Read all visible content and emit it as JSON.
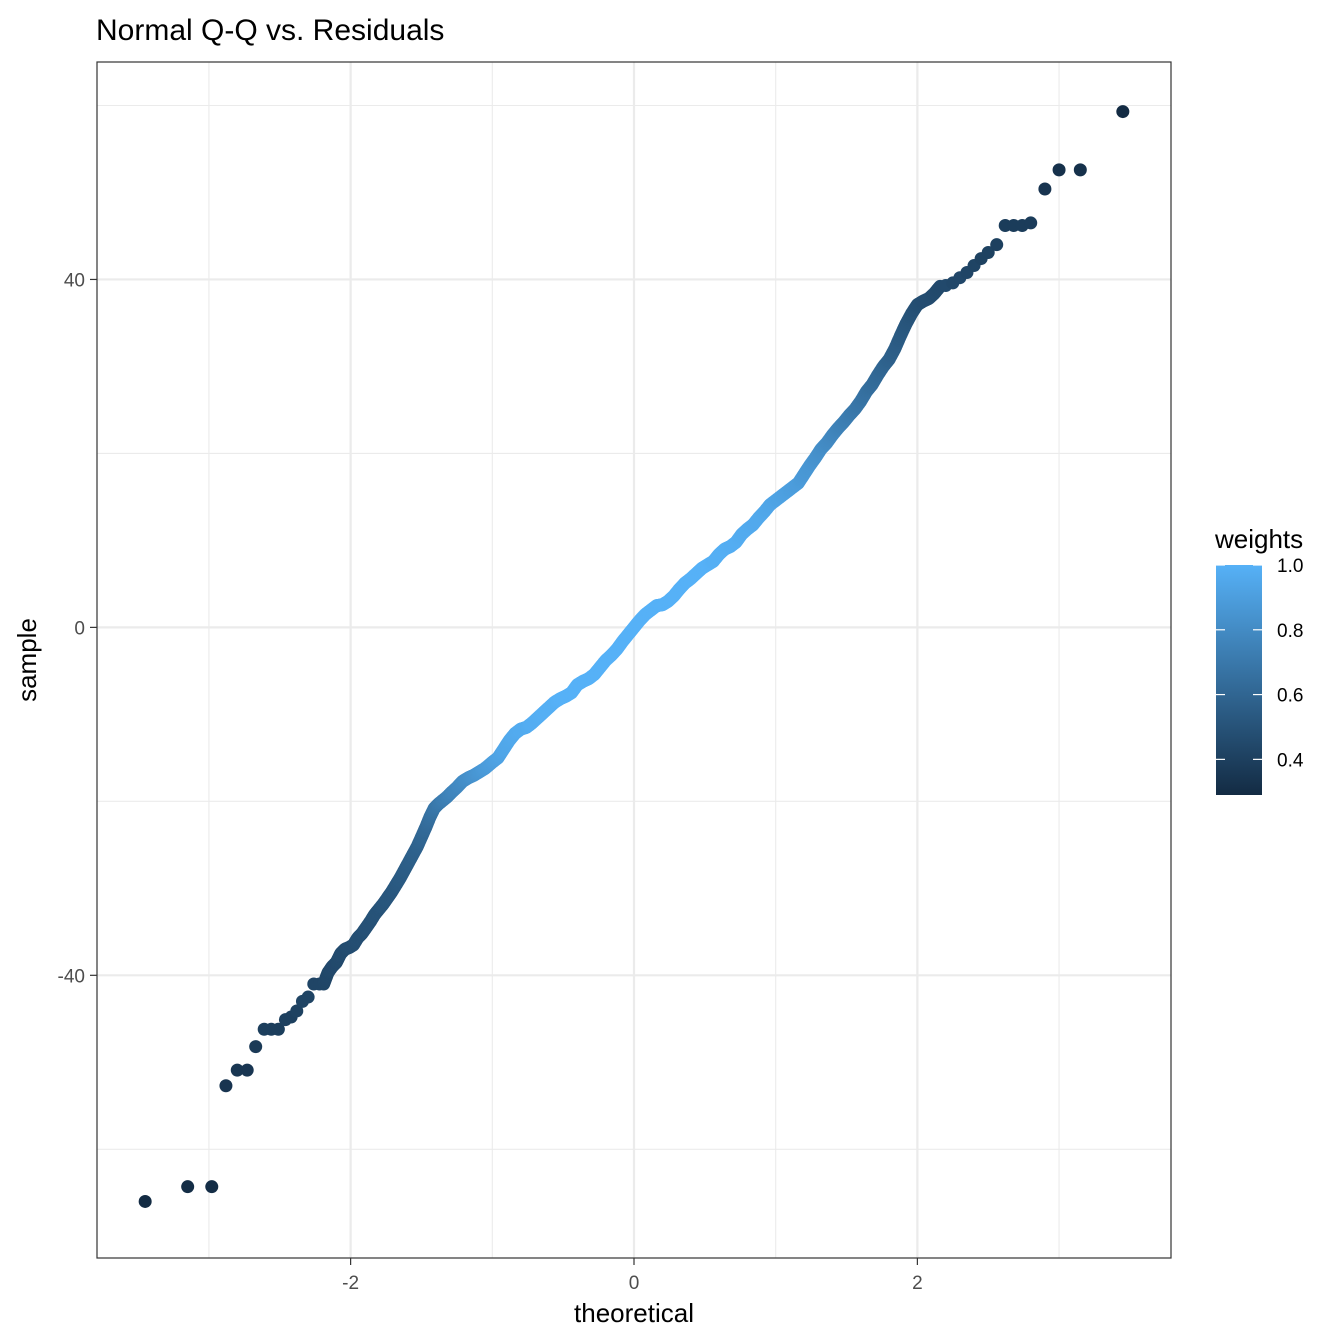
{
  "chart_data": {
    "type": "scatter",
    "title": "Normal Q-Q vs. Residuals",
    "xlabel": "theoretical",
    "ylabel": "sample",
    "xlim": [
      -3.79,
      3.79
    ],
    "ylim": [
      -72.5,
      65
    ],
    "x_ticks": [
      -2,
      0,
      2
    ],
    "x_tick_labels": [
      "-2",
      "0",
      "2"
    ],
    "y_ticks": [
      -40,
      0,
      40
    ],
    "y_tick_labels": [
      "-40",
      "0",
      "40"
    ],
    "grid": true,
    "legend": {
      "title": "weights",
      "position": "right",
      "min": 0.29,
      "max": 1.0,
      "ticks": [
        0.4,
        0.6,
        0.8,
        1.0
      ],
      "tick_labels": [
        "0.4",
        "0.6",
        "0.8",
        "1.0"
      ],
      "color_low": "#132b43",
      "color_high": "#56b1f7"
    },
    "points": [
      [
        -3.45,
        -66.0,
        0.29
      ],
      [
        -3.15,
        -64.3,
        0.3
      ],
      [
        -2.98,
        -64.3,
        0.3
      ],
      [
        -2.88,
        -52.7,
        0.34
      ],
      [
        -2.8,
        -50.9,
        0.35
      ],
      [
        -2.73,
        -50.9,
        0.35
      ],
      [
        -2.67,
        -48.2,
        0.37
      ],
      [
        -2.61,
        -46.2,
        0.39
      ],
      [
        -2.56,
        -46.2,
        0.39
      ],
      [
        -2.51,
        -46.2,
        0.39
      ],
      [
        -2.46,
        -45.1,
        0.4
      ],
      [
        -2.42,
        -44.8,
        0.4
      ],
      [
        -2.38,
        -44.1,
        0.41
      ],
      [
        -2.34,
        -43.0,
        0.42
      ],
      [
        -2.3,
        -42.5,
        0.42
      ],
      [
        -2.26,
        -41.0,
        0.43
      ],
      [
        -2.22,
        -41.0,
        0.43
      ],
      [
        -2.19,
        -41.0,
        0.43
      ],
      [
        -2.16,
        -39.7,
        0.44
      ],
      [
        -2.13,
        -39.0,
        0.45
      ],
      [
        -2.1,
        -38.5,
        0.45
      ],
      [
        -2.07,
        -37.5,
        0.46
      ],
      [
        -2.04,
        -37.0,
        0.46
      ],
      [
        -2.01,
        -36.8,
        0.47
      ],
      [
        -1.98,
        -36.5,
        0.47
      ],
      [
        -1.95,
        -35.7,
        0.48
      ],
      [
        -1.92,
        -35.2,
        0.48
      ],
      [
        -1.89,
        -34.5,
        0.49
      ],
      [
        -1.86,
        -33.8,
        0.49
      ],
      [
        -1.83,
        -33.0,
        0.5
      ],
      [
        -1.8,
        -32.4,
        0.5
      ],
      [
        -1.77,
        -31.8,
        0.51
      ],
      [
        -1.74,
        -31.1,
        0.52
      ],
      [
        -1.71,
        -30.4,
        0.52
      ],
      [
        -1.68,
        -29.6,
        0.53
      ],
      [
        -1.65,
        -28.8,
        0.54
      ],
      [
        -1.62,
        -27.9,
        0.55
      ],
      [
        -1.59,
        -27.0,
        0.56
      ],
      [
        -1.56,
        -26.1,
        0.57
      ],
      [
        -1.53,
        -25.2,
        0.58
      ],
      [
        -1.5,
        -24.1,
        0.6
      ],
      [
        -1.47,
        -23.0,
        0.62
      ],
      [
        -1.44,
        -21.8,
        0.65
      ],
      [
        -1.41,
        -20.8,
        0.68
      ],
      [
        -1.38,
        -20.3,
        0.7
      ],
      [
        -1.35,
        -19.9,
        0.72
      ],
      [
        -1.32,
        -19.5,
        0.74
      ],
      [
        -1.29,
        -19.0,
        0.76
      ],
      [
        -1.25,
        -18.4,
        0.78
      ],
      [
        -1.21,
        -17.7,
        0.8
      ],
      [
        -1.17,
        -17.3,
        0.82
      ],
      [
        -1.13,
        -17.0,
        0.84
      ],
      [
        -1.09,
        -16.6,
        0.86
      ],
      [
        -1.05,
        -16.2,
        0.88
      ],
      [
        -1.0,
        -15.5,
        0.9
      ],
      [
        -0.96,
        -15.0,
        0.92
      ],
      [
        -0.92,
        -14.0,
        0.94
      ],
      [
        -0.88,
        -13.0,
        0.95
      ],
      [
        -0.84,
        -12.2,
        0.96
      ],
      [
        -0.8,
        -11.7,
        0.97
      ],
      [
        -0.76,
        -11.5,
        0.97
      ],
      [
        -0.72,
        -11.0,
        0.98
      ],
      [
        -0.68,
        -10.4,
        0.98
      ],
      [
        -0.64,
        -9.8,
        0.99
      ],
      [
        -0.6,
        -9.2,
        0.99
      ],
      [
        -0.56,
        -8.6,
        0.99
      ],
      [
        -0.52,
        -8.2,
        1.0
      ],
      [
        -0.48,
        -7.9,
        1.0
      ],
      [
        -0.44,
        -7.5,
        1.0
      ],
      [
        -0.4,
        -6.6,
        1.0
      ],
      [
        -0.36,
        -6.2,
        1.0
      ],
      [
        -0.32,
        -5.9,
        1.0
      ],
      [
        -0.28,
        -5.4,
        1.0
      ],
      [
        -0.24,
        -4.6,
        1.0
      ],
      [
        -0.2,
        -3.8,
        1.0
      ],
      [
        -0.16,
        -3.2,
        1.0
      ],
      [
        -0.12,
        -2.5,
        1.0
      ],
      [
        -0.08,
        -1.6,
        1.0
      ],
      [
        -0.04,
        -0.8,
        1.0
      ],
      [
        0.0,
        0.0,
        1.0
      ],
      [
        0.04,
        0.8,
        1.0
      ],
      [
        0.08,
        1.5,
        1.0
      ],
      [
        0.12,
        2.0,
        1.0
      ],
      [
        0.16,
        2.5,
        1.0
      ],
      [
        0.2,
        2.6,
        1.0
      ],
      [
        0.24,
        3.0,
        1.0
      ],
      [
        0.28,
        3.6,
        1.0
      ],
      [
        0.32,
        4.4,
        1.0
      ],
      [
        0.36,
        5.1,
        1.0
      ],
      [
        0.4,
        5.6,
        1.0
      ],
      [
        0.44,
        6.2,
        1.0
      ],
      [
        0.48,
        6.8,
        1.0
      ],
      [
        0.52,
        7.2,
        1.0
      ],
      [
        0.56,
        7.6,
        0.99
      ],
      [
        0.6,
        8.4,
        0.99
      ],
      [
        0.64,
        9.0,
        0.99
      ],
      [
        0.68,
        9.3,
        0.98
      ],
      [
        0.72,
        9.8,
        0.98
      ],
      [
        0.76,
        10.7,
        0.97
      ],
      [
        0.8,
        11.3,
        0.97
      ],
      [
        0.84,
        11.8,
        0.96
      ],
      [
        0.88,
        12.6,
        0.96
      ],
      [
        0.92,
        13.3,
        0.95
      ],
      [
        0.96,
        14.1,
        0.94
      ],
      [
        1.0,
        14.6,
        0.93
      ],
      [
        1.04,
        15.1,
        0.92
      ],
      [
        1.08,
        15.6,
        0.91
      ],
      [
        1.12,
        16.1,
        0.9
      ],
      [
        1.16,
        16.6,
        0.89
      ],
      [
        1.2,
        17.6,
        0.87
      ],
      [
        1.24,
        18.6,
        0.86
      ],
      [
        1.28,
        19.5,
        0.84
      ],
      [
        1.32,
        20.5,
        0.82
      ],
      [
        1.36,
        21.2,
        0.8
      ],
      [
        1.4,
        22.1,
        0.78
      ],
      [
        1.44,
        22.9,
        0.76
      ],
      [
        1.48,
        23.6,
        0.74
      ],
      [
        1.52,
        24.4,
        0.72
      ],
      [
        1.56,
        25.1,
        0.7
      ],
      [
        1.6,
        26.0,
        0.68
      ],
      [
        1.64,
        27.1,
        0.66
      ],
      [
        1.68,
        27.9,
        0.64
      ],
      [
        1.72,
        29.0,
        0.62
      ],
      [
        1.76,
        30.0,
        0.6
      ],
      [
        1.8,
        30.8,
        0.58
      ],
      [
        1.84,
        32.0,
        0.56
      ],
      [
        1.88,
        33.5,
        0.54
      ],
      [
        1.92,
        34.9,
        0.52
      ],
      [
        1.96,
        36.1,
        0.5
      ],
      [
        2.0,
        37.1,
        0.48
      ],
      [
        2.04,
        37.5,
        0.47
      ],
      [
        2.08,
        37.8,
        0.47
      ],
      [
        2.12,
        38.4,
        0.46
      ],
      [
        2.16,
        39.2,
        0.45
      ],
      [
        2.2,
        39.3,
        0.45
      ],
      [
        2.25,
        39.6,
        0.44
      ],
      [
        2.3,
        40.2,
        0.44
      ],
      [
        2.35,
        40.8,
        0.43
      ],
      [
        2.4,
        41.6,
        0.42
      ],
      [
        2.45,
        42.4,
        0.41
      ],
      [
        2.5,
        43.1,
        0.41
      ],
      [
        2.56,
        44.0,
        0.4
      ],
      [
        2.62,
        46.2,
        0.38
      ],
      [
        2.68,
        46.2,
        0.38
      ],
      [
        2.74,
        46.2,
        0.38
      ],
      [
        2.8,
        46.5,
        0.38
      ],
      [
        2.9,
        50.4,
        0.34
      ],
      [
        3.0,
        52.6,
        0.32
      ],
      [
        3.15,
        52.6,
        0.32
      ],
      [
        3.45,
        59.3,
        0.29
      ]
    ]
  }
}
